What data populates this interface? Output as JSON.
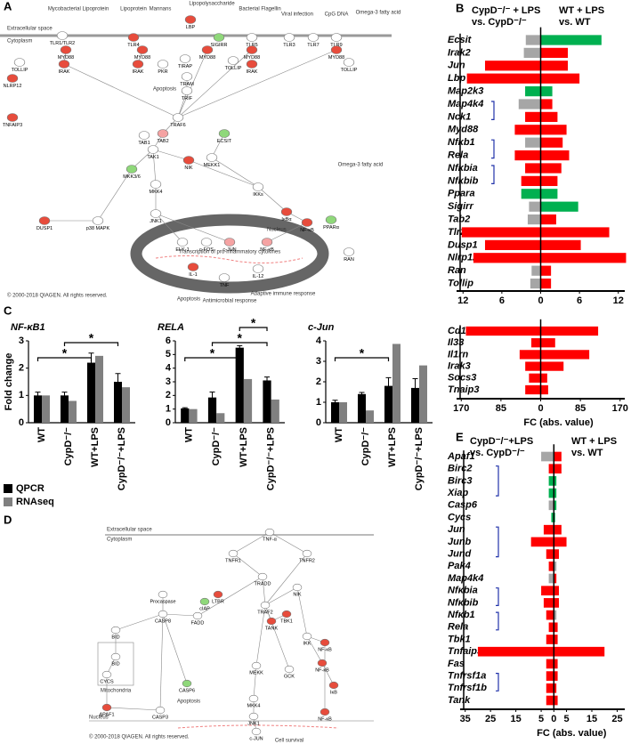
{
  "panel_labels": [
    "A",
    "B",
    "C",
    "D",
    "E"
  ],
  "panel_a": {
    "texts": [
      "Extracellular space",
      "Cytoplasm",
      "Mycobacterial Lipoprotein",
      "Lipoprotein",
      "Mannans",
      "Lipopolysaccharide",
      "Bacterial Flagellin",
      "Viral infection",
      "CpG DNA",
      "Omega-3 fatty acid",
      "Omega-3 fatty acid",
      "Nucleus",
      "Transcription of pro-inflammatory cytokines",
      "Apoptosis",
      "Apoptosis",
      "Antimicrobial response",
      "Adaptive immune response",
      "© 2000-2018 QIAGEN. All rights reserved."
    ],
    "nodes": [
      {
        "label": "TLR1/TLR2",
        "color": "#ffffff"
      },
      {
        "label": "MYD88",
        "color": "#e74c3c"
      },
      {
        "label": "TOLLIP",
        "color": "#ffffff"
      },
      {
        "label": "IRAK",
        "color": "#e74c3c"
      },
      {
        "label": "NLRP12",
        "color": "#e74c3c"
      },
      {
        "label": "TNFAIP3",
        "color": "#e74c3c"
      },
      {
        "label": "LBP",
        "color": "#e74c3c"
      },
      {
        "label": "TLR4",
        "color": "#e74c3c"
      },
      {
        "label": "MYD88",
        "color": "#e74c3c"
      },
      {
        "label": "IRAK",
        "color": "#e74c3c"
      },
      {
        "label": "PKR",
        "color": "#ffffff"
      },
      {
        "label": "SIGIRR",
        "color": "#8fd87a"
      },
      {
        "label": "TIRAP",
        "color": "#ffffff"
      },
      {
        "label": "MYD88",
        "color": "#e74c3c"
      },
      {
        "label": "TOLLIP",
        "color": "#ffffff"
      },
      {
        "label": "TRAM",
        "color": "#ffffff"
      },
      {
        "label": "TRIF",
        "color": "#ffffff"
      },
      {
        "label": "TLR5",
        "color": "#ffffff"
      },
      {
        "label": "MYD88",
        "color": "#e74c3c"
      },
      {
        "label": "IRAK",
        "color": "#e74c3c"
      },
      {
        "label": "TLR3",
        "color": "#ffffff"
      },
      {
        "label": "TLR7",
        "color": "#ffffff"
      },
      {
        "label": "TLR9",
        "color": "#ffffff"
      },
      {
        "label": "MYD88",
        "color": "#e74c3c"
      },
      {
        "label": "TOLLIP",
        "color": "#ffffff"
      },
      {
        "label": "TRAF6",
        "color": "#ffffff"
      },
      {
        "label": "TAB2",
        "color": "#f5a3a3"
      },
      {
        "label": "TAB1",
        "color": "#ffffff"
      },
      {
        "label": "TAK1",
        "color": "#ffffff"
      },
      {
        "label": "ECSIT",
        "color": "#8fd87a"
      },
      {
        "label": "MEKK1",
        "color": "#ffffff"
      },
      {
        "label": "NIK",
        "color": "#e74c3c"
      },
      {
        "label": "MKK3/6",
        "color": "#8fd87a"
      },
      {
        "label": "MKK4",
        "color": "#ffffff"
      },
      {
        "label": "IKKs",
        "color": "#ffffff"
      },
      {
        "label": "IκBα",
        "color": "#e74c3c"
      },
      {
        "label": "NF-κB",
        "color": "#e74c3c"
      },
      {
        "label": "JNK1",
        "color": "#ffffff"
      },
      {
        "label": "p38 MAPK",
        "color": "#ffffff"
      },
      {
        "label": "DUSP1",
        "color": "#e74c3c"
      },
      {
        "label": "ELK-1",
        "color": "#ffffff"
      },
      {
        "label": "c-FOS",
        "color": "#ffffff"
      },
      {
        "label": "c-JUN",
        "color": "#f5a3a3"
      },
      {
        "label": "NF-κB",
        "color": "#f5a3a3"
      },
      {
        "label": "IL-1",
        "color": "#e74c3c"
      },
      {
        "label": "TNF",
        "color": "#ffffff"
      },
      {
        "label": "IL-12",
        "color": "#ffffff"
      },
      {
        "label": "PPARα",
        "color": "#8fd87a"
      },
      {
        "label": "RAN",
        "color": "#ffffff"
      }
    ]
  },
  "panel_b": {
    "left_title": [
      "CypD⁻/⁻ + LPS",
      "vs. CypD⁻/⁻"
    ],
    "right_title": [
      "WT + LPS",
      "vs. WT"
    ],
    "genes": [
      "Ecsit",
      "Irak2",
      "Jun",
      "Lbp",
      "Map2k3",
      "Map4k4",
      "Nck1",
      "Myd88",
      "Nfκb1",
      "Rela",
      "Nfκbia",
      "Nfκbib",
      "Ppara",
      "Sigirr",
      "Tab2",
      "Tlr2",
      "Dusp1",
      "Nlrp12",
      "Ran",
      "Tollip"
    ],
    "left": [
      2.3,
      2.6,
      8.6,
      11.4,
      2.4,
      3.4,
      2.4,
      4.0,
      2.4,
      4.0,
      2.4,
      3.0,
      3.0,
      1.8,
      2.0,
      12.2,
      8.6,
      10.4,
      1.4,
      1.6
    ],
    "left_colors": [
      "#a6a6a6",
      "#a6a6a6",
      "#ff0000",
      "#ff0000",
      "#00b050",
      "#a6a6a6",
      "#ff0000",
      "#ff0000",
      "#a6a6a6",
      "#ff0000",
      "#ff0000",
      "#ff0000",
      "#00b050",
      "#a6a6a6",
      "#a6a6a6",
      "#ff0000",
      "#ff0000",
      "#ff0000",
      "#a6a6a6",
      "#a6a6a6"
    ],
    "right": [
      9.4,
      4.2,
      4.2,
      6.0,
      1.8,
      1.8,
      2.6,
      4.0,
      3.4,
      4.4,
      3.2,
      2.6,
      2.6,
      5.8,
      2.4,
      10.6,
      6.2,
      13.2,
      1.6,
      1.6
    ],
    "right_colors": [
      "#00b050",
      "#ff0000",
      "#ff0000",
      "#ff0000",
      "#00b050",
      "#ff0000",
      "#ff0000",
      "#ff0000",
      "#ff0000",
      "#ff0000",
      "#ff0000",
      "#ff0000",
      "#00b050",
      "#00b050",
      "#ff0000",
      "#ff0000",
      "#ff0000",
      "#ff0000",
      "#ff0000",
      "#ff0000"
    ],
    "xlim": [
      -13,
      13
    ],
    "xticks": [
      {
        "value": -12,
        "label": "12"
      },
      {
        "value": -6,
        "label": "6"
      },
      0,
      6,
      12
    ]
  },
  "panel_b2": {
    "genes": [
      "Cd14",
      "Il33",
      "Il1rn",
      "Irak3",
      "Socs3",
      "Tnaip3"
    ],
    "left": [
      160,
      20,
      45,
      33,
      25,
      33
    ],
    "right": [
      123,
      31,
      104,
      49,
      14,
      16
    ],
    "color": "#ff0000",
    "xlim": [
      -180,
      180
    ],
    "xticks": [
      {
        "value": -170,
        "label": "170"
      },
      {
        "value": -85,
        "label": "85"
      },
      0,
      85,
      170
    ],
    "x_label": "FC (abs. value)"
  },
  "panel_c": {
    "y_label": "Fold change",
    "categories": [
      "WT",
      "CypD⁻/⁻",
      "WT+LPS",
      "CypD⁻/⁻+LPS"
    ],
    "series": [
      {
        "name": "QPCR",
        "color": "#000000"
      },
      {
        "name": "RNAseq",
        "color": "#808080"
      }
    ],
    "charts": [
      {
        "title": "NF-κB1",
        "ylim": [
          0,
          3
        ],
        "yticks": [
          0,
          1,
          2,
          3
        ],
        "qpcr": [
          1.0,
          1.0,
          2.2,
          1.5
        ],
        "qpcr_err": [
          0.12,
          0.12,
          0.35,
          0.3
        ],
        "rnaseq": [
          1.0,
          0.8,
          2.45,
          1.3
        ],
        "significance": [
          {
            "from": 0,
            "to": 2,
            "label": "*"
          },
          {
            "from": 1,
            "to": 3,
            "label": "*"
          }
        ]
      },
      {
        "title": "RELA",
        "ylim": [
          0,
          6
        ],
        "yticks": [
          0,
          1,
          2,
          3,
          4,
          5,
          6
        ],
        "qpcr": [
          1.05,
          1.85,
          5.5,
          3.1
        ],
        "qpcr_err": [
          0.05,
          0.4,
          0.15,
          0.25
        ],
        "rnaseq": [
          1.0,
          0.7,
          3.2,
          1.7
        ],
        "significance": [
          {
            "from": 0,
            "to": 2,
            "label": "*"
          },
          {
            "from": 1,
            "to": 3,
            "label": "*"
          },
          {
            "from": 2,
            "to": 3,
            "label": "*"
          }
        ]
      },
      {
        "title": "c-Jun",
        "ylim": [
          0,
          4
        ],
        "yticks": [
          0,
          1,
          2,
          3,
          4
        ],
        "qpcr": [
          1.0,
          1.4,
          1.8,
          1.7
        ],
        "qpcr_err": [
          0.1,
          0.08,
          0.4,
          0.45
        ],
        "rnaseq": [
          1.0,
          0.6,
          3.85,
          2.8
        ],
        "significance": [
          {
            "from": 0,
            "to": 2,
            "label": "*"
          }
        ]
      }
    ]
  },
  "panel_d": {
    "texts": [
      "Extracellular space",
      "Cytoplasm",
      "Nucleus",
      "Mitochondria",
      "Apoptosis",
      "Cell survival",
      "© 2000-2018 QIAGEN. All rights reserved."
    ],
    "nodes": [
      {
        "label": "TNF-α",
        "color": "#ffffff"
      },
      {
        "label": "TNFR1",
        "color": "#ffffff"
      },
      {
        "label": "TNFR2",
        "color": "#ffffff"
      },
      {
        "label": "TRADD",
        "color": "#ffffff"
      },
      {
        "label": "TRAF2",
        "color": "#ffffff"
      },
      {
        "label": "LTBR",
        "color": "#e74c3c"
      },
      {
        "label": "cIAP",
        "color": "#8fd87a"
      },
      {
        "label": "FADD",
        "color": "#ffffff"
      },
      {
        "label": "Procaspase",
        "color": "#ffffff"
      },
      {
        "label": "CASP8",
        "color": "#ffffff"
      },
      {
        "label": "BID",
        "color": "#ffffff"
      },
      {
        "label": "BID",
        "color": "#ffffff"
      },
      {
        "label": "CYCS",
        "color": "#ffffff"
      },
      {
        "label": "APAF1",
        "color": "#e74c3c"
      },
      {
        "label": "CASP3",
        "color": "#ffffff"
      },
      {
        "label": "CASP6",
        "color": "#8fd87a"
      },
      {
        "label": "TANK",
        "color": "#e74c3c"
      },
      {
        "label": "TBK1",
        "color": "#e74c3c"
      },
      {
        "label": "NIK",
        "color": "#ffffff"
      },
      {
        "label": "IKK",
        "color": "#ffffff"
      },
      {
        "label": "NF-κB",
        "color": "#e74c3c"
      },
      {
        "label": "IκB",
        "color": "#e74c3c"
      },
      {
        "label": "NF-κB",
        "color": "#e74c3c"
      },
      {
        "label": "MEKK",
        "color": "#ffffff"
      },
      {
        "label": "MKK4",
        "color": "#ffffff"
      },
      {
        "label": "JNK1",
        "color": "#ffffff"
      },
      {
        "label": "GCK",
        "color": "#ffffff"
      },
      {
        "label": "c-JUN",
        "color": "#ffffff"
      },
      {
        "label": "NF-κB",
        "color": "#e74c3c"
      }
    ]
  },
  "panel_e": {
    "left_title": [
      "CypD⁻/⁻+LPS",
      "vs. CypD⁻/⁻"
    ],
    "right_title": [
      "WT + LPS",
      "vs. WT"
    ],
    "genes": [
      "Apaf1",
      "Birc2",
      "Birc3",
      "Xiap",
      "Casp6",
      "Cycs",
      "Jun",
      "Junb",
      "Jund",
      "Pak4",
      "Map4k4",
      "Nfκbia",
      "Nfκbib",
      "Nfκb1",
      "Rela",
      "Tbk1",
      "Tnfaip3",
      "Fas",
      "Tnfrsf1a",
      "Tnfrsf1b",
      "Tank"
    ],
    "left": [
      5,
      2,
      2,
      2,
      2,
      1,
      4,
      9,
      3,
      2,
      2,
      5,
      4,
      3,
      2,
      3,
      30,
      3,
      3,
      3,
      3
    ],
    "left_colors": [
      "#a6a6a6",
      "#ff0000",
      "#00b050",
      "#00b050",
      "#a6a6a6",
      "#00b050",
      "#ff0000",
      "#ff0000",
      "#ff0000",
      "#ff0000",
      "#a6a6a6",
      "#ff0000",
      "#ff0000",
      "#ff0000",
      "#ff0000",
      "#ff0000",
      "#ff0000",
      "#ff0000",
      "#ff0000",
      "#ff0000",
      "#ff0000"
    ],
    "right": [
      3,
      3,
      1,
      1,
      1,
      0.5,
      3,
      5,
      2,
      1,
      1,
      2,
      2,
      1,
      1.5,
      1.5,
      20,
      1.5,
      1.5,
      1,
      1.5
    ],
    "right_colors": [
      "#ff0000",
      "#ff0000",
      "#00b050",
      "#00b050",
      "#00b050",
      "#00b050",
      "#ff0000",
      "#ff0000",
      "#ff0000",
      "#a6a6a6",
      "#ff0000",
      "#ff0000",
      "#ff0000",
      "#a6a6a6",
      "#ff0000",
      "#ff0000",
      "#ff0000",
      "#ff0000",
      "#ff0000",
      "#ff0000",
      "#ff0000"
    ],
    "xlim": [
      -37,
      28
    ],
    "xticks": [
      {
        "value": -35,
        "label": "35"
      },
      {
        "value": -25,
        "label": "25"
      },
      {
        "value": -15,
        "label": "15"
      },
      {
        "value": -5,
        "label": "5"
      },
      0,
      5,
      15,
      25
    ],
    "x_label": "FC (abs. value)"
  }
}
